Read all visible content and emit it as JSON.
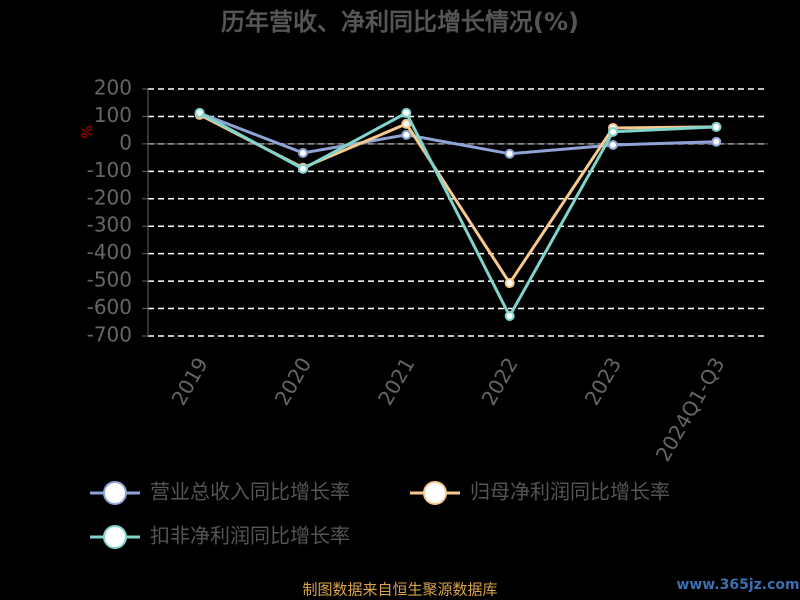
{
  "chart_data": {
    "type": "line",
    "title": "历年营收、净利同比增长情况(%)",
    "y_label": "%",
    "categories": [
      "2019",
      "2020",
      "2021",
      "2022",
      "2023",
      "2024Q1-Q3"
    ],
    "series": [
      {
        "name": "营业总收入同比增长率",
        "color": "#8fa3d6",
        "values": [
          112,
          -33,
          33,
          -36,
          -4,
          8
        ]
      },
      {
        "name": "归母净利润同比增长率",
        "color": "#f6c98c",
        "values": [
          106,
          -87,
          73,
          -507,
          58,
          62
        ]
      },
      {
        "name": "扣非净利润同比增长率",
        "color": "#7fd4cc",
        "values": [
          113,
          -91,
          113,
          -627,
          44,
          62
        ]
      }
    ],
    "ylim": [
      -700,
      200
    ],
    "yticks": [
      -700,
      -600,
      -500,
      -400,
      -300,
      -200,
      -100,
      0,
      100,
      200
    ],
    "grid": true,
    "source": "制图数据来自恒生聚源数据库",
    "watermark": "www.365jz.com"
  }
}
